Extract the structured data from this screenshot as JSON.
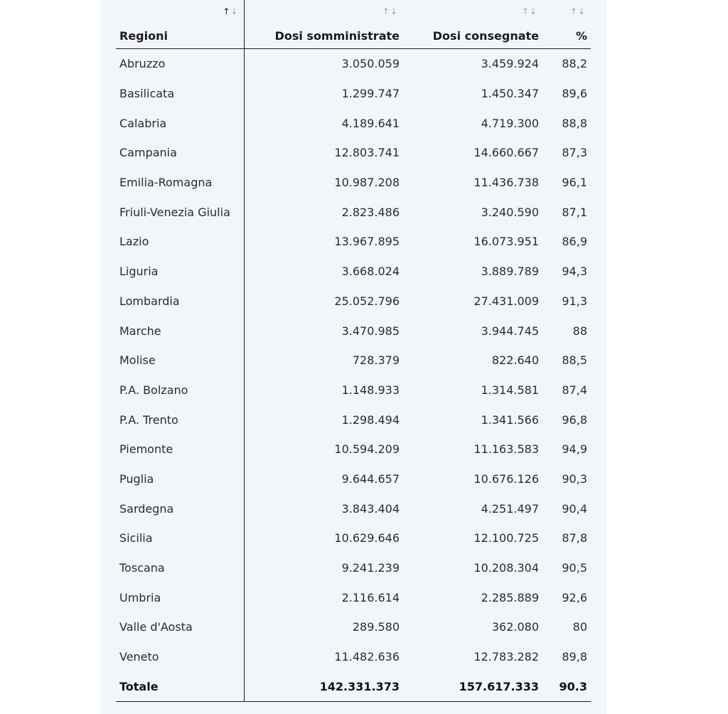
{
  "table": {
    "headers": {
      "region": "Regioni",
      "administered": "Dosi somministrate",
      "delivered": "Dosi consegnate",
      "percent": "%"
    },
    "sort_icon": "↑↓",
    "rows": [
      {
        "region": "Abruzzo",
        "administered": "3.050.059",
        "delivered": "3.459.924",
        "percent": "88,2"
      },
      {
        "region": "Basilicata",
        "administered": "1.299.747",
        "delivered": "1.450.347",
        "percent": "89,6"
      },
      {
        "region": "Calabria",
        "administered": "4.189.641",
        "delivered": "4.719.300",
        "percent": "88,8"
      },
      {
        "region": "Campania",
        "administered": "12.803.741",
        "delivered": "14.660.667",
        "percent": "87,3"
      },
      {
        "region": "Emilia-Romagna",
        "administered": "10.987.208",
        "delivered": "11.436.738",
        "percent": "96,1"
      },
      {
        "region": "Friuli-Venezia Giulia",
        "administered": "2.823.486",
        "delivered": "3.240.590",
        "percent": "87,1"
      },
      {
        "region": "Lazio",
        "administered": "13.967.895",
        "delivered": "16.073.951",
        "percent": "86,9"
      },
      {
        "region": "Liguria",
        "administered": "3.668.024",
        "delivered": "3.889.789",
        "percent": "94,3"
      },
      {
        "region": "Lombardia",
        "administered": "25.052.796",
        "delivered": "27.431.009",
        "percent": "91,3"
      },
      {
        "region": "Marche",
        "administered": "3.470.985",
        "delivered": "3.944.745",
        "percent": "88"
      },
      {
        "region": "Molise",
        "administered": "728.379",
        "delivered": "822.640",
        "percent": "88,5"
      },
      {
        "region": "P.A. Bolzano",
        "administered": "1.148.933",
        "delivered": "1.314.581",
        "percent": "87,4"
      },
      {
        "region": "P.A. Trento",
        "administered": "1.298.494",
        "delivered": "1.341.566",
        "percent": "96,8"
      },
      {
        "region": "Piemonte",
        "administered": "10.594.209",
        "delivered": "11.163.583",
        "percent": "94,9"
      },
      {
        "region": "Puglia",
        "administered": "9.644.657",
        "delivered": "10.676.126",
        "percent": "90,3"
      },
      {
        "region": "Sardegna",
        "administered": "3.843.404",
        "delivered": "4.251.497",
        "percent": "90,4"
      },
      {
        "region": "Sicilia",
        "administered": "10.629.646",
        "delivered": "12.100.725",
        "percent": "87,8"
      },
      {
        "region": "Toscana",
        "administered": "9.241.239",
        "delivered": "10.208.304",
        "percent": "90,5"
      },
      {
        "region": "Umbria",
        "administered": "2.116.614",
        "delivered": "2.285.889",
        "percent": "92,6"
      },
      {
        "region": "Valle d'Aosta",
        "administered": "289.580",
        "delivered": "362.080",
        "percent": "80"
      },
      {
        "region": "Veneto",
        "administered": "11.482.636",
        "delivered": "12.783.282",
        "percent": "89,8"
      }
    ],
    "total": {
      "region": "Totale",
      "administered": "142.331.373",
      "delivered": "157.617.333",
      "percent": "90.3"
    }
  }
}
